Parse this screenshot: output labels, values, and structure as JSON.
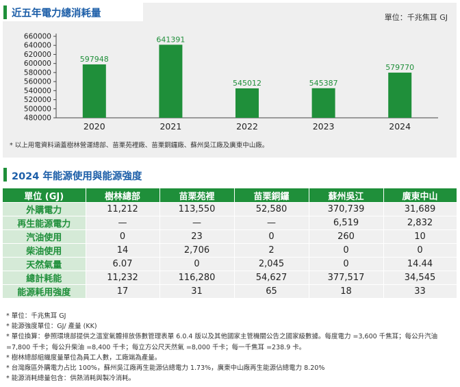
{
  "chart_section": {
    "title": "近五年電力總消耗量",
    "unit_label": "單位：千兆焦耳 GJ",
    "note": "* 以上用電資料涵蓋樹林營運總部、苗栗苑裡廠、苗栗銅鑼廠、蘇州吳江廠及廣東中山廠。"
  },
  "chart_data": {
    "type": "bar",
    "title": "近五年電力總消耗量",
    "categories": [
      "2020",
      "2021",
      "2022",
      "2023",
      "2024"
    ],
    "values": [
      597948,
      641391,
      545012,
      545387,
      579770
    ],
    "value_labels": [
      "597948",
      "641391",
      "545012",
      "545387",
      "579770"
    ],
    "ylim": [
      480000,
      660000
    ],
    "yticks": [
      480000,
      500000,
      520000,
      540000,
      560000,
      580000,
      600000,
      620000,
      640000,
      660000
    ],
    "ytick_labels": [
      "480000",
      "500000",
      "520000",
      "540000",
      "560000",
      "580000",
      "600000",
      "620000",
      "640000",
      "660000"
    ],
    "bar_color": "#1f8f3a",
    "label_color": "#1f8f3a",
    "grid": false,
    "legend": "none"
  },
  "table_section": {
    "title": "2024 年能源使用與能源強度",
    "header": [
      "單位 (GJ)",
      "樹林總部",
      "苗栗苑裡",
      "苗栗銅鑼",
      "蘇州吳江",
      "廣東中山"
    ],
    "rows": [
      {
        "label": "外購電力",
        "values": [
          "11,212",
          "113,550",
          "52,580",
          "370,739",
          "31,689"
        ]
      },
      {
        "label": "再生能源電力",
        "values": [
          "—",
          "—",
          "—",
          "6,519",
          "2,832"
        ]
      },
      {
        "label": "汽油使用",
        "values": [
          "0",
          "23",
          "0",
          "260",
          "10"
        ]
      },
      {
        "label": "柴油使用",
        "values": [
          "14",
          "2,706",
          "2",
          "0",
          "0"
        ]
      },
      {
        "label": "天然氣量",
        "values": [
          "6.07",
          "0",
          "2,045",
          "0",
          "14.44"
        ]
      },
      {
        "label": "總計耗能",
        "values": [
          "11,232",
          "116,280",
          "54,627",
          "377,517",
          "34,545"
        ]
      },
      {
        "label": "能源耗用強度",
        "values": [
          "17",
          "31",
          "65",
          "18",
          "33"
        ]
      }
    ]
  },
  "footnotes": [
    "* 單位：千兆焦耳 GJ",
    "* 能源強度單位：GJ/ 產量 (KK)",
    "* 單位換算：參照環境部提供之溫室氣體排放係數管理表單 6.0.4 版以及其他國家主管機關公告之國家級數據。每度電力 =3,600 千焦耳；每公升汽油 =7,800 千卡；每公升柴油 =8,400 千卡；每立方公尺天然氣 =8,000 千卡；每一千焦耳 =238.9 卡。",
    "* 樹林總部組織度量單位為員工人數，工廠端為產量。",
    "* 台灣廠區外購電力占比 100%，蘇州吳江廠再生能源佔總電力 1.73%，廣東中山廠再生能源佔總電力 8.20%",
    "* 能源消耗總量包含：供熱消耗與製冷消耗。"
  ]
}
